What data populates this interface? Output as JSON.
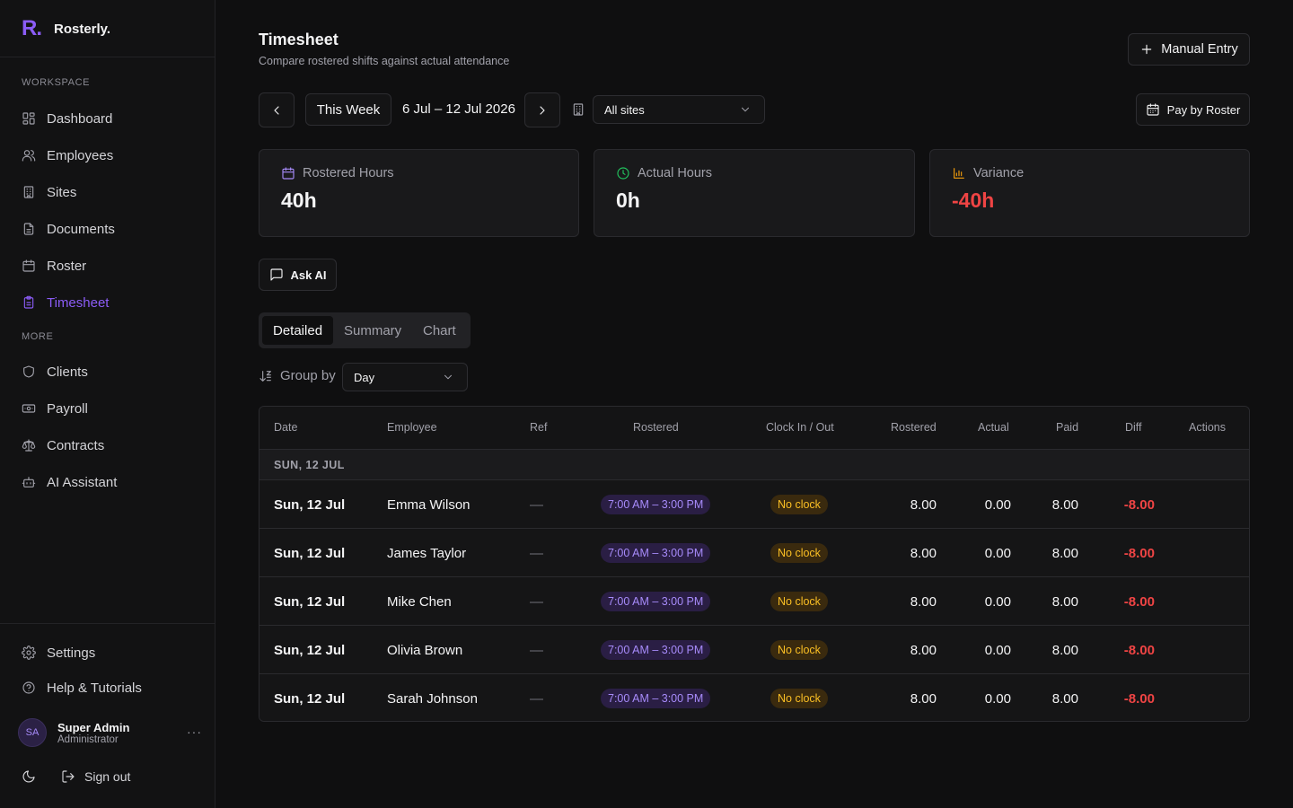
{
  "app": {
    "logo": "R.",
    "name": "Rosterly."
  },
  "sidebar": {
    "workspace_label": "WORKSPACE",
    "more_label": "MORE",
    "workspace_items": [
      {
        "label": "Dashboard",
        "icon": "dashboard-icon"
      },
      {
        "label": "Employees",
        "icon": "users-icon"
      },
      {
        "label": "Sites",
        "icon": "building-icon"
      },
      {
        "label": "Documents",
        "icon": "document-icon"
      },
      {
        "label": "Roster",
        "icon": "calendar-icon"
      },
      {
        "label": "Timesheet",
        "icon": "clipboard-icon",
        "active": true
      }
    ],
    "more_items": [
      {
        "label": "Clients",
        "icon": "shield-icon"
      },
      {
        "label": "Payroll",
        "icon": "banknote-icon"
      },
      {
        "label": "Contracts",
        "icon": "scale-icon"
      },
      {
        "label": "AI Assistant",
        "icon": "bot-icon"
      }
    ],
    "settings_label": "Settings",
    "help_label": "Help & Tutorials",
    "user": {
      "initials": "SA",
      "name": "Super Admin",
      "role": "Administrator",
      "more": "···"
    },
    "signout_label": "Sign out"
  },
  "header": {
    "title": "Timesheet",
    "subtitle": "Compare rostered shifts against actual attendance",
    "manual_entry_label": "Manual Entry"
  },
  "filters": {
    "week_label": "This Week",
    "date_range": "6 Jul – 12 Jul 2026",
    "site_selected": "All sites",
    "pay_label": "Pay by Roster"
  },
  "stats": [
    {
      "label": "Rostered Hours",
      "value": "40h",
      "icon": "calendar-icon",
      "icon_color": "#a78bfa",
      "value_color": "#f4f4f5"
    },
    {
      "label": "Actual Hours",
      "value": "0h",
      "icon": "clock-icon",
      "icon_color": "#22c55e",
      "value_color": "#f4f4f5"
    },
    {
      "label": "Variance",
      "value": "-40h",
      "icon": "bar-chart-icon",
      "icon_color": "#f59e0b",
      "value_color": "#ef4444"
    }
  ],
  "ask_ai_label": "Ask AI",
  "tabs": [
    "Detailed",
    "Summary",
    "Chart"
  ],
  "group_by": {
    "label": "Group by",
    "selected": "Day"
  },
  "table": {
    "columns": [
      "Date",
      "Employee",
      "Ref",
      "Rostered",
      "Clock In / Out",
      "Rostered",
      "Actual",
      "Paid",
      "Diff",
      "Actions"
    ],
    "group_label": "SUN, 12 JUL",
    "rows": [
      {
        "date": "Sun, 12 Jul",
        "employee": "Emma Wilson",
        "ref": "—",
        "shift": "7:00 AM – 3:00 PM",
        "clock": "No clock",
        "rostered": "8.00",
        "actual": "0.00",
        "paid": "8.00",
        "diff": "-8.00"
      },
      {
        "date": "Sun, 12 Jul",
        "employee": "James Taylor",
        "ref": "—",
        "shift": "7:00 AM – 3:00 PM",
        "clock": "No clock",
        "rostered": "8.00",
        "actual": "0.00",
        "paid": "8.00",
        "diff": "-8.00"
      },
      {
        "date": "Sun, 12 Jul",
        "employee": "Mike Chen",
        "ref": "—",
        "shift": "7:00 AM – 3:00 PM",
        "clock": "No clock",
        "rostered": "8.00",
        "actual": "0.00",
        "paid": "8.00",
        "diff": "-8.00"
      },
      {
        "date": "Sun, 12 Jul",
        "employee": "Olivia Brown",
        "ref": "—",
        "shift": "7:00 AM – 3:00 PM",
        "clock": "No clock",
        "rostered": "8.00",
        "actual": "0.00",
        "paid": "8.00",
        "diff": "-8.00"
      },
      {
        "date": "Sun, 12 Jul",
        "employee": "Sarah Johnson",
        "ref": "—",
        "shift": "7:00 AM – 3:00 PM",
        "clock": "No clock",
        "rostered": "8.00",
        "actual": "0.00",
        "paid": "8.00",
        "diff": "-8.00"
      }
    ]
  }
}
